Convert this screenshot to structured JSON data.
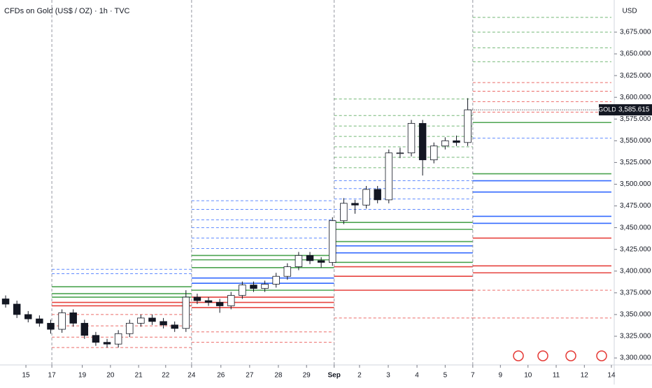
{
  "chart_data": {
    "type": "candlestick",
    "title": "CFDs on Gold (US$ / OZ) · 1h · TVC",
    "currency": "USD",
    "x": [
      1,
      3,
      5,
      7,
      9,
      11,
      13,
      15,
      17,
      19,
      21,
      23,
      25,
      27,
      29,
      31,
      33,
      35,
      37,
      39,
      41,
      43,
      45,
      47,
      49,
      51,
      53,
      55,
      57,
      59,
      61,
      63,
      65,
      67,
      69,
      71,
      73,
      75,
      77,
      79,
      81,
      83
    ],
    "open": [
      3368,
      3362,
      3350,
      3345,
      3340,
      3333,
      3352,
      3340,
      3326,
      3318,
      3316,
      3328,
      3340,
      3346,
      3342,
      3338,
      3334,
      3370,
      3366,
      3364,
      3360,
      3372,
      3384,
      3380,
      3385,
      3394,
      3405,
      3418,
      3412,
      3410,
      3458,
      3478,
      3476,
      3494,
      3482,
      3536,
      3536,
      3570,
      3528,
      3544,
      3550,
      3548
    ],
    "high": [
      3372,
      3366,
      3354,
      3349,
      3344,
      3356,
      3356,
      3344,
      3330,
      3322,
      3332,
      3344,
      3350,
      3350,
      3346,
      3342,
      3378,
      3374,
      3370,
      3368,
      3376,
      3388,
      3388,
      3389,
      3398,
      3409,
      3422,
      3422,
      3416,
      3462,
      3484,
      3482,
      3498,
      3498,
      3540,
      3542,
      3574,
      3574,
      3548,
      3554,
      3556,
      3599
    ],
    "low": [
      3358,
      3346,
      3341,
      3336,
      3328,
      3329,
      3336,
      3322,
      3314,
      3312,
      3312,
      3324,
      3336,
      3338,
      3334,
      3330,
      3330,
      3362,
      3360,
      3352,
      3356,
      3368,
      3376,
      3376,
      3381,
      3390,
      3401,
      3408,
      3404,
      3406,
      3454,
      3466,
      3472,
      3478,
      3478,
      3530,
      3532,
      3510,
      3524,
      3540,
      3544,
      3544
    ],
    "close": [
      3362,
      3350,
      3345,
      3340,
      3333,
      3352,
      3340,
      3326,
      3318,
      3316,
      3328,
      3340,
      3346,
      3342,
      3338,
      3334,
      3370,
      3366,
      3364,
      3360,
      3372,
      3384,
      3380,
      3385,
      3394,
      3405,
      3418,
      3412,
      3410,
      3458,
      3478,
      3476,
      3494,
      3482,
      3536,
      3536,
      3570,
      3528,
      3544,
      3550,
      3548,
      3585.615
    ],
    "up_color": "#ffffff",
    "down_color": "#131722",
    "last_price": {
      "name": "GOLD",
      "value": 3585.615,
      "label": "3,585.615"
    },
    "xlim": [
      0,
      109
    ],
    "ylim": [
      3292,
      3712
    ],
    "xticks": [
      {
        "value": 4.6,
        "label": "15"
      },
      {
        "value": 9.2,
        "label": "17"
      },
      {
        "value": 14.6,
        "label": "19"
      },
      {
        "value": 19.6,
        "label": "20"
      },
      {
        "value": 24.6,
        "label": "21"
      },
      {
        "value": 29.4,
        "label": "22"
      },
      {
        "value": 34.0,
        "label": "24"
      },
      {
        "value": 39.2,
        "label": "26"
      },
      {
        "value": 44.3,
        "label": "27"
      },
      {
        "value": 49.4,
        "label": "28"
      },
      {
        "value": 54.4,
        "label": "29"
      },
      {
        "value": 59.3,
        "label": "Sep"
      },
      {
        "value": 63.8,
        "label": "2"
      },
      {
        "value": 68.9,
        "label": "3"
      },
      {
        "value": 74.0,
        "label": "4"
      },
      {
        "value": 79.0,
        "label": "5"
      },
      {
        "value": 83.9,
        "label": "7"
      },
      {
        "value": 88.8,
        "label": "9"
      },
      {
        "value": 93.7,
        "label": "10"
      },
      {
        "value": 98.7,
        "label": "11"
      },
      {
        "value": 103.7,
        "label": "12"
      },
      {
        "value": 108.5,
        "label": "14"
      }
    ],
    "yticks": [
      {
        "value": 3300,
        "label": "3,300.000"
      },
      {
        "value": 3325,
        "label": "3,325.000"
      },
      {
        "value": 3350,
        "label": "3,350.000"
      },
      {
        "value": 3375,
        "label": "3,375.000"
      },
      {
        "value": 3400,
        "label": "3,400.000"
      },
      {
        "value": 3425,
        "label": "3,425.000"
      },
      {
        "value": 3450,
        "label": "3,450.000"
      },
      {
        "value": 3475,
        "label": "3,475.000"
      },
      {
        "value": 3500,
        "label": "3,500.000"
      },
      {
        "value": 3525,
        "label": "3,525.000"
      },
      {
        "value": 3550,
        "label": "3,550.000"
      },
      {
        "value": 3575,
        "label": "3,575.000"
      },
      {
        "value": 3600,
        "label": "3,600.000"
      },
      {
        "value": 3625,
        "label": "3,625.000"
      },
      {
        "value": 3650,
        "label": "3,650.000"
      },
      {
        "value": 3675,
        "label": "3,675.000"
      }
    ],
    "zones": [
      {
        "x": [
          9.2,
          34.0
        ],
        "lines": [
          {
            "y": 3402,
            "color": "#2962ff",
            "style": "dashed"
          },
          {
            "y": 3397,
            "color": "#2962ff",
            "style": "dashed"
          },
          {
            "y": 3382,
            "color": "#43a047",
            "style": "solid"
          },
          {
            "y": 3374,
            "color": "#43a047",
            "style": "solid"
          },
          {
            "y": 3370,
            "color": "#43a047",
            "style": "solid"
          },
          {
            "y": 3364,
            "color": "#e53935",
            "style": "solid"
          },
          {
            "y": 3360,
            "color": "#e53935",
            "style": "solid"
          },
          {
            "y": 3350,
            "color": "#e53935",
            "style": "dashed"
          },
          {
            "y": 3337,
            "color": "#e53935",
            "style": "dashed"
          },
          {
            "y": 3324,
            "color": "#e53935",
            "style": "dashed"
          },
          {
            "y": 3312,
            "color": "#e53935",
            "style": "dashed"
          }
        ]
      },
      {
        "x": [
          34.0,
          59.3
        ],
        "lines": [
          {
            "y": 3481,
            "color": "#2962ff",
            "style": "dashed"
          },
          {
            "y": 3471,
            "color": "#2962ff",
            "style": "dashed"
          },
          {
            "y": 3459,
            "color": "#2962ff",
            "style": "dashed"
          },
          {
            "y": 3450,
            "color": "#2962ff",
            "style": "dashed"
          },
          {
            "y": 3438,
            "color": "#2962ff",
            "style": "dashed"
          },
          {
            "y": 3426,
            "color": "#2962ff",
            "style": "dashed"
          },
          {
            "y": 3418,
            "color": "#43a047",
            "style": "solid"
          },
          {
            "y": 3413,
            "color": "#43a047",
            "style": "solid"
          },
          {
            "y": 3404,
            "color": "#43a047",
            "style": "solid"
          },
          {
            "y": 3392,
            "color": "#2962ff",
            "style": "solid"
          },
          {
            "y": 3386,
            "color": "#2962ff",
            "style": "solid"
          },
          {
            "y": 3378,
            "color": "#43a047",
            "style": "solid"
          },
          {
            "y": 3370,
            "color": "#e53935",
            "style": "solid"
          },
          {
            "y": 3364,
            "color": "#e53935",
            "style": "solid"
          },
          {
            "y": 3358,
            "color": "#e53935",
            "style": "solid"
          },
          {
            "y": 3330,
            "color": "#e53935",
            "style": "dashed"
          },
          {
            "y": 3318,
            "color": "#e53935",
            "style": "dashed"
          }
        ]
      },
      {
        "x": [
          59.3,
          83.9
        ],
        "lines": [
          {
            "y": 3598,
            "color": "#43a047",
            "style": "dashed"
          },
          {
            "y": 3579,
            "color": "#43a047",
            "style": "dashed"
          },
          {
            "y": 3567,
            "color": "#43a047",
            "style": "dashed"
          },
          {
            "y": 3555,
            "color": "#43a047",
            "style": "dashed"
          },
          {
            "y": 3543,
            "color": "#43a047",
            "style": "dashed"
          },
          {
            "y": 3531,
            "color": "#43a047",
            "style": "dashed"
          },
          {
            "y": 3519,
            "color": "#43a047",
            "style": "dashed"
          },
          {
            "y": 3504,
            "color": "#2962ff",
            "style": "dashed"
          },
          {
            "y": 3495,
            "color": "#2962ff",
            "style": "dashed"
          },
          {
            "y": 3483,
            "color": "#2962ff",
            "style": "dashed"
          },
          {
            "y": 3471,
            "color": "#2962ff",
            "style": "dashed"
          },
          {
            "y": 3456,
            "color": "#43a047",
            "style": "solid"
          },
          {
            "y": 3448,
            "color": "#43a047",
            "style": "solid"
          },
          {
            "y": 3434,
            "color": "#43a047",
            "style": "solid"
          },
          {
            "y": 3429,
            "color": "#2962ff",
            "style": "solid"
          },
          {
            "y": 3421,
            "color": "#2962ff",
            "style": "solid"
          },
          {
            "y": 3410,
            "color": "#43a047",
            "style": "solid"
          },
          {
            "y": 3405,
            "color": "#e53935",
            "style": "solid"
          },
          {
            "y": 3394,
            "color": "#e53935",
            "style": "solid"
          },
          {
            "y": 3378,
            "color": "#e53935",
            "style": "solid"
          },
          {
            "y": 3346,
            "color": "#e53935",
            "style": "dashed"
          }
        ]
      },
      {
        "x": [
          83.9,
          108.5
        ],
        "lines": [
          {
            "y": 3692,
            "color": "#43a047",
            "style": "dashed"
          },
          {
            "y": 3675,
            "color": "#43a047",
            "style": "dashed"
          },
          {
            "y": 3657,
            "color": "#43a047",
            "style": "dashed"
          },
          {
            "y": 3641,
            "color": "#43a047",
            "style": "dashed"
          },
          {
            "y": 3617,
            "color": "#e53935",
            "style": "dashed"
          },
          {
            "y": 3607,
            "color": "#e53935",
            "style": "dashed"
          },
          {
            "y": 3595,
            "color": "#e53935",
            "style": "dashed"
          },
          {
            "y": 3583,
            "color": "#e53935",
            "style": "dashed"
          },
          {
            "y": 3571,
            "color": "#43a047",
            "style": "solid"
          },
          {
            "y": 3553,
            "color": "#2962ff",
            "style": "dashed"
          },
          {
            "y": 3512,
            "color": "#43a047",
            "style": "solid"
          },
          {
            "y": 3504,
            "color": "#2962ff",
            "style": "solid"
          },
          {
            "y": 3491,
            "color": "#2962ff",
            "style": "solid"
          },
          {
            "y": 3463,
            "color": "#2962ff",
            "style": "solid"
          },
          {
            "y": 3455,
            "color": "#2962ff",
            "style": "solid"
          },
          {
            "y": 3438,
            "color": "#e53935",
            "style": "solid"
          },
          {
            "y": 3406,
            "color": "#e53935",
            "style": "solid"
          },
          {
            "y": 3398,
            "color": "#e53935",
            "style": "solid"
          },
          {
            "y": 3378,
            "color": "#e53935",
            "style": "dashed"
          },
          {
            "y": 3346,
            "color": "#e53935",
            "style": "dashed"
          }
        ]
      }
    ]
  }
}
